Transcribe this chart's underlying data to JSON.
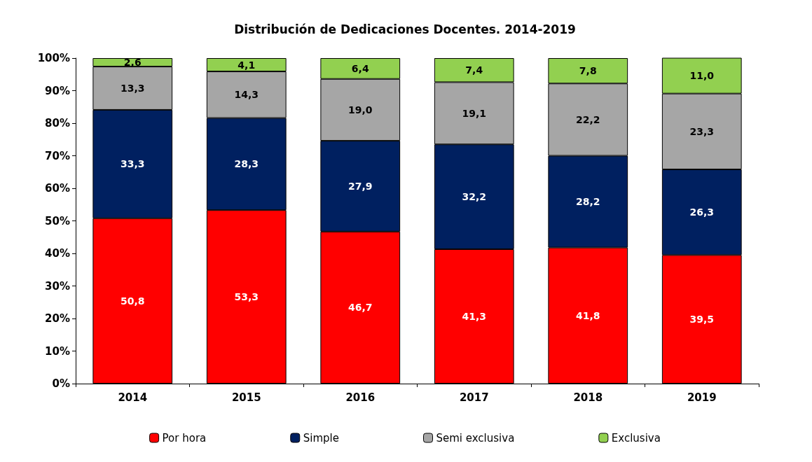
{
  "chart_data": {
    "type": "bar",
    "title": "Distribución de Dedicaciones Docentes. 2014-2019",
    "categories": [
      "2014",
      "2015",
      "2016",
      "2017",
      "2018",
      "2019"
    ],
    "stacked": true,
    "series": [
      {
        "name": "Por hora",
        "color": "#ff0000",
        "values": [
          50.8,
          53.3,
          46.7,
          41.3,
          41.8,
          39.5
        ],
        "value_labels": [
          "50,8",
          "53,3",
          "46,7",
          "41,3",
          "41,8",
          "39,5"
        ]
      },
      {
        "name": "Simple",
        "color": "#002060",
        "values": [
          33.3,
          28.3,
          27.9,
          32.2,
          28.2,
          26.3
        ],
        "value_labels": [
          "33,3",
          "28,3",
          "27,9",
          "32,2",
          "28,2",
          "26,3"
        ]
      },
      {
        "name": "Semi exclusiva",
        "color": "#a6a6a6",
        "values": [
          13.3,
          14.3,
          19.0,
          19.1,
          22.2,
          23.3
        ],
        "value_labels": [
          "13,3",
          "14,3",
          "19,0",
          "19,1",
          "22,2",
          "23,3"
        ]
      },
      {
        "name": "Exclusiva",
        "color": "#92d050",
        "values": [
          2.6,
          4.1,
          6.4,
          7.4,
          7.8,
          11.0
        ],
        "value_labels": [
          "2,6",
          "4,1",
          "6,4",
          "7,4",
          "7,8",
          "11,0"
        ]
      }
    ],
    "ylim": [
      0,
      100
    ],
    "yticks": [
      {
        "value": 0,
        "label": "0%"
      },
      {
        "value": 10,
        "label": "10%"
      },
      {
        "value": 20,
        "label": "20%"
      },
      {
        "value": 30,
        "label": "30%"
      },
      {
        "value": 40,
        "label": "40%"
      },
      {
        "value": 50,
        "label": "50%"
      },
      {
        "value": 60,
        "label": "60%"
      },
      {
        "value": 70,
        "label": "70%"
      },
      {
        "value": 80,
        "label": "80%"
      },
      {
        "value": 90,
        "label": "90%"
      },
      {
        "value": 100,
        "label": "100%"
      }
    ],
    "grid": false,
    "legend": "bottom"
  }
}
